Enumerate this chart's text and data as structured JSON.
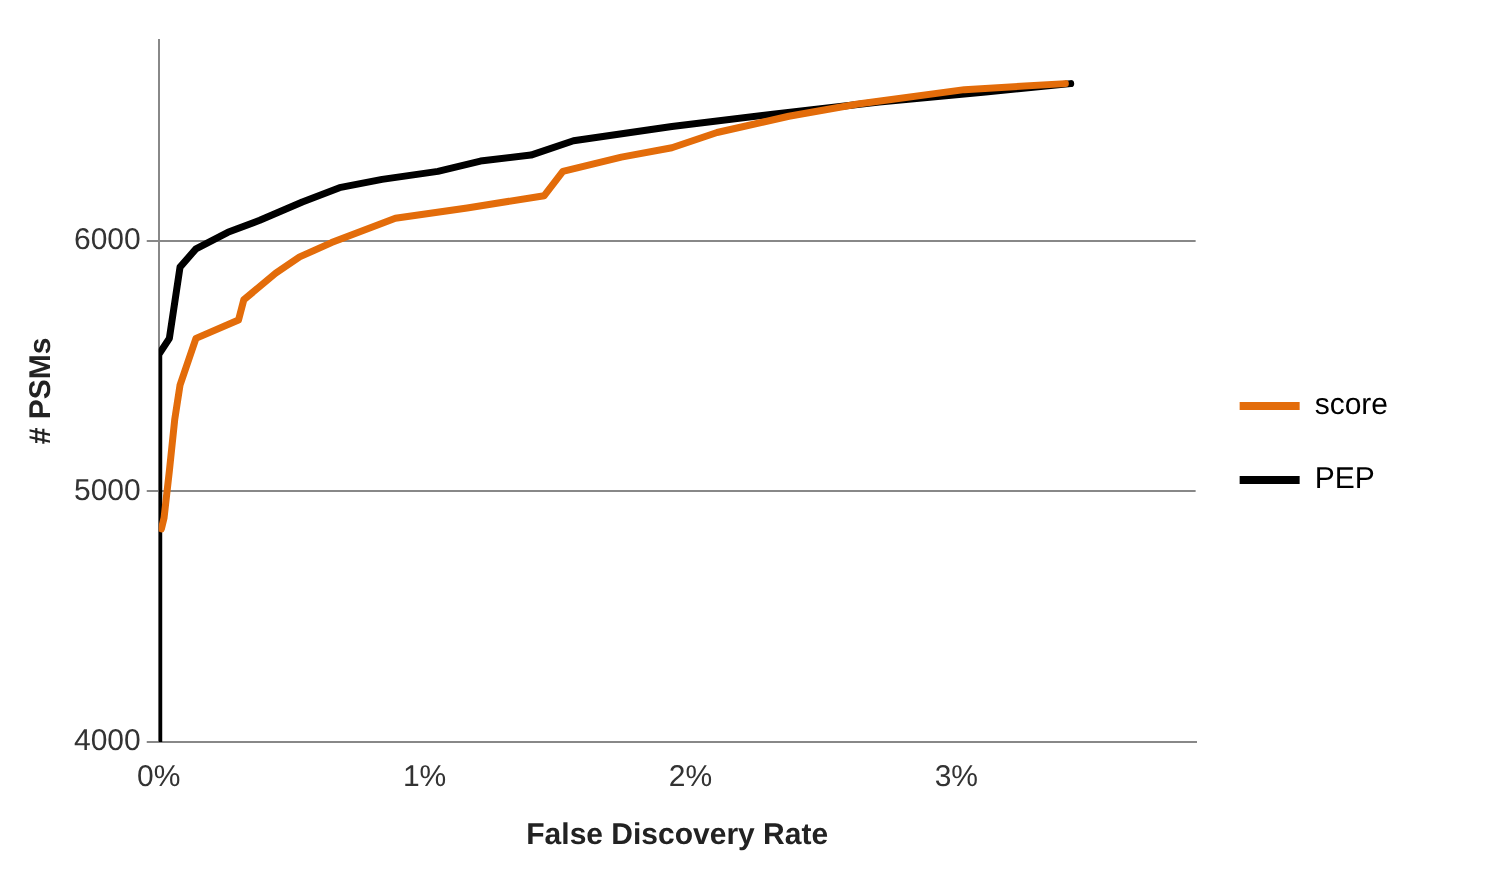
{
  "chart_data": {
    "type": "line",
    "xlabel": "False Discovery Rate",
    "ylabel": "# PSMs",
    "xlim": [
      0,
      3.9
    ],
    "xticks": [
      {
        "value": 0,
        "label": "0%"
      },
      {
        "value": 1,
        "label": "1%"
      },
      {
        "value": 2,
        "label": "2%"
      },
      {
        "value": 3,
        "label": "3%"
      }
    ],
    "ylim": [
      4000,
      6800
    ],
    "yticks": [
      4000,
      5000,
      6000
    ],
    "grid": "y",
    "legend": "right",
    "marker": "none",
    "line_style": "solid",
    "series": [
      {
        "name": "score",
        "color": "#e36c0a",
        "x": [
          0.01,
          0.02,
          0.04,
          0.06,
          0.08,
          0.14,
          0.3,
          0.32,
          0.44,
          0.53,
          0.65,
          0.89,
          1.16,
          1.45,
          1.52,
          1.74,
          1.93,
          2.1,
          2.37,
          2.63,
          3.03,
          3.41
        ],
        "values": [
          4850,
          4894,
          5081,
          5285,
          5423,
          5610,
          5683,
          5764,
          5870,
          5935,
          5992,
          6089,
          6130,
          6179,
          6276,
          6333,
          6370,
          6431,
          6496,
          6545,
          6602,
          6626
        ]
      },
      {
        "name": "PEP",
        "color": "#000000",
        "x": [
          0,
          0,
          0.04,
          0.08,
          0.14,
          0.26,
          0.38,
          0.54,
          0.68,
          0.84,
          1.05,
          1.21,
          1.4,
          1.56,
          1.93,
          2.31,
          2.71,
          3.11,
          3.43
        ],
        "values": [
          4000,
          5545,
          5610,
          5894,
          5967,
          6033,
          6081,
          6154,
          6211,
          6244,
          6276,
          6317,
          6341,
          6398,
          6455,
          6504,
          6553,
          6593,
          6626
        ]
      }
    ]
  }
}
